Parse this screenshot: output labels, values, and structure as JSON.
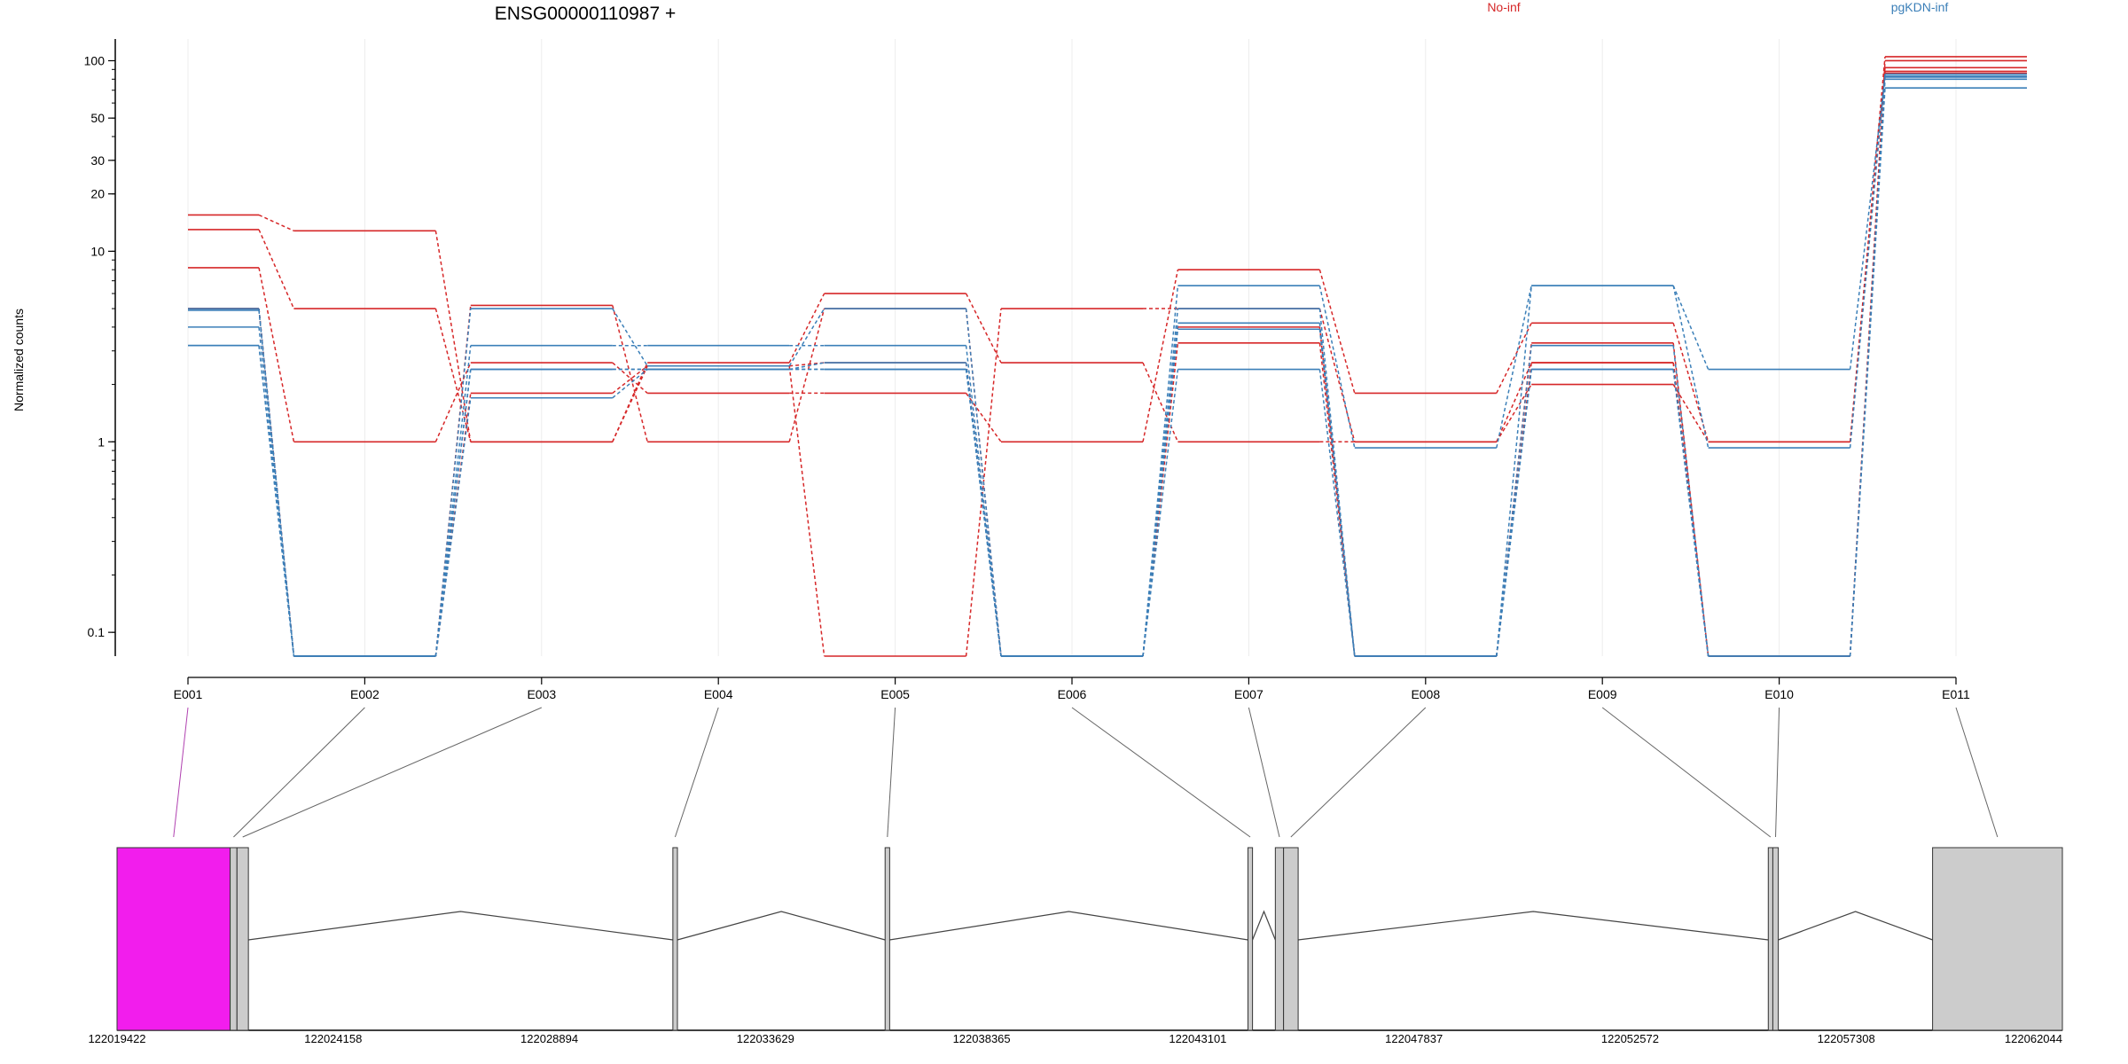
{
  "chart_data": {
    "type": "line",
    "title": "ENSG00000110987 +",
    "ylabel": "Normalized counts",
    "y_scale": "log",
    "ylim": [
      0.075,
      130
    ],
    "y_ticks": [
      0.1,
      1,
      10,
      20,
      30,
      50,
      100
    ],
    "y_tick_labels": [
      "0.1",
      "1",
      "10",
      "20",
      "30",
      "50",
      "100"
    ],
    "categories": [
      "E001",
      "E002",
      "E003",
      "E004",
      "E005",
      "E006",
      "E007",
      "E008",
      "E009",
      "E010",
      "E011"
    ],
    "legend": [
      {
        "label": "No-inf",
        "color": "#d62728"
      },
      {
        "label": "pgKDN-inf",
        "color": "#3b7fb8"
      }
    ],
    "series": [
      {
        "group": "No-inf",
        "color": "#d62728",
        "values": [
          15.5,
          12.8,
          1.0,
          2.5,
          0.075,
          5.0,
          5.0,
          1.0,
          2.0,
          1.0,
          105
        ]
      },
      {
        "group": "No-inf",
        "color": "#d62728",
        "values": [
          13.0,
          5.0,
          1.0,
          2.6,
          6.0,
          2.6,
          1.0,
          1.0,
          2.6,
          0.075,
          100
        ]
      },
      {
        "group": "No-inf",
        "color": "#d62728",
        "values": [
          8.2,
          1.0,
          2.6,
          1.8,
          1.8,
          1.0,
          8.0,
          1.8,
          4.2,
          1.0,
          92
        ]
      },
      {
        "group": "No-inf",
        "color": "#d62728",
        "values": [
          5.0,
          0.075,
          1.8,
          2.5,
          2.6,
          0.075,
          3.3,
          0.075,
          3.3,
          0.075,
          88
        ]
      },
      {
        "group": "No-inf",
        "color": "#d62728",
        "values": [
          5.0,
          0.075,
          5.2,
          1.0,
          5.0,
          0.075,
          4.0,
          0.075,
          2.6,
          0.075,
          86
        ]
      },
      {
        "group": "pgKDN-inf",
        "color": "#3b7fb8",
        "values": [
          5.0,
          0.075,
          5.0,
          2.5,
          5.0,
          0.075,
          6.6,
          0.93,
          6.6,
          0.93,
          85
        ]
      },
      {
        "group": "pgKDN-inf",
        "color": "#3b7fb8",
        "values": [
          4.9,
          0.075,
          3.2,
          3.2,
          3.2,
          0.075,
          5.0,
          0.075,
          6.6,
          2.4,
          83
        ]
      },
      {
        "group": "pgKDN-inf",
        "color": "#3b7fb8",
        "values": [
          4.0,
          0.075,
          2.4,
          2.4,
          2.4,
          0.075,
          4.2,
          0.075,
          3.2,
          0.075,
          82
        ]
      },
      {
        "group": "pgKDN-inf",
        "color": "#3b7fb8",
        "values": [
          3.2,
          0.075,
          1.7,
          2.4,
          2.6,
          0.075,
          2.4,
          0.075,
          2.4,
          0.075,
          80
        ]
      },
      {
        "group": "pgKDN-inf",
        "color": "#3b7fb8",
        "values": [
          3.2,
          0.075,
          2.4,
          2.4,
          2.4,
          0.075,
          3.9,
          0.075,
          2.4,
          0.075,
          72
        ]
      }
    ],
    "gene_model": {
      "genomic_ticks": [
        "122019422",
        "122024158",
        "122028894",
        "122033629",
        "122038365",
        "122043101",
        "122047837",
        "122052572",
        "122057308",
        "122062044"
      ],
      "exons": [
        {
          "id": "E001",
          "start": 122019422,
          "end": 122021900,
          "color": "#f21ded"
        },
        {
          "id": "E002",
          "start": 122021900,
          "end": 122022050,
          "color": "#cccccc"
        },
        {
          "id": "E003",
          "start": 122022050,
          "end": 122022300,
          "color": "#cccccc"
        },
        {
          "id": "E004",
          "start": 122031600,
          "end": 122031700,
          "color": "#cccccc"
        },
        {
          "id": "E005",
          "start": 122036250,
          "end": 122036350,
          "color": "#cccccc"
        },
        {
          "id": "E006",
          "start": 122044200,
          "end": 122044300,
          "color": "#cccccc"
        },
        {
          "id": "E007",
          "start": 122044800,
          "end": 122044980,
          "color": "#cccccc"
        },
        {
          "id": "E008",
          "start": 122044980,
          "end": 122045300,
          "color": "#cccccc"
        },
        {
          "id": "E009",
          "start": 122055600,
          "end": 122055700,
          "color": "#cccccc"
        },
        {
          "id": "E010",
          "start": 122055700,
          "end": 122055820,
          "color": "#cccccc"
        },
        {
          "id": "E011",
          "start": 122059200,
          "end": 122062044,
          "color": "#cccccc"
        }
      ]
    }
  }
}
